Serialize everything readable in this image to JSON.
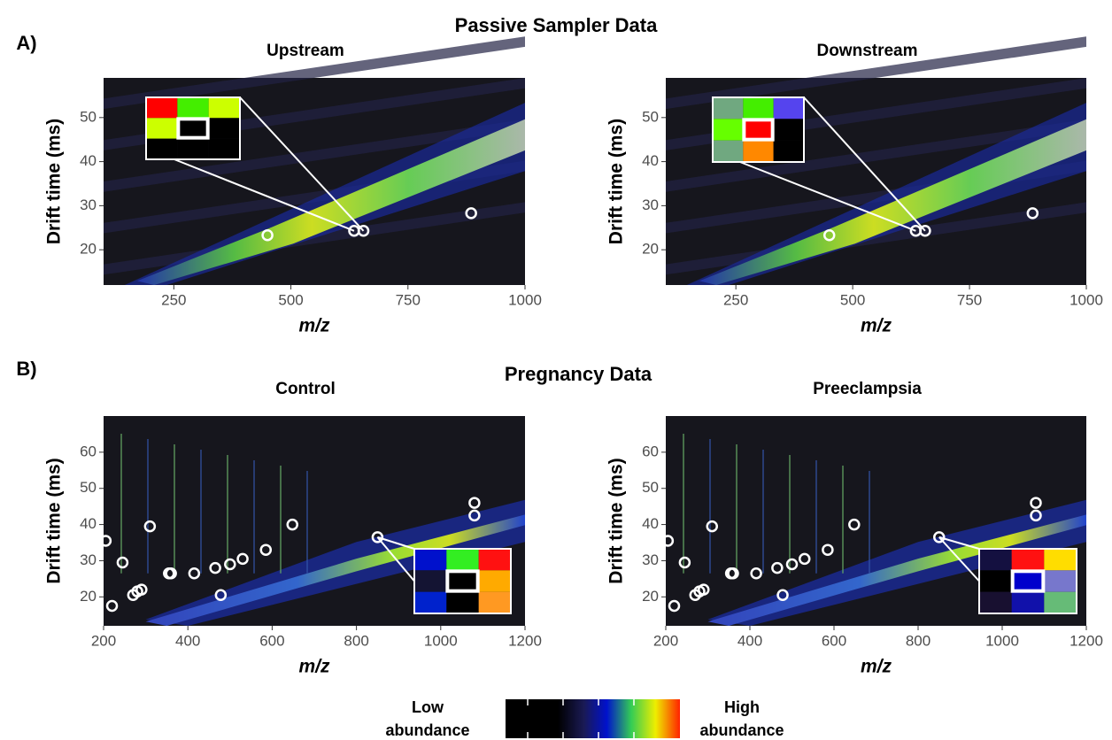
{
  "sections": [
    {
      "label": "A)",
      "title": "Passive Sampler Data"
    },
    {
      "label": "B)",
      "title": "Pregnancy Data"
    }
  ],
  "colorbar": {
    "low_label": "Low abundance",
    "high_label": "High abundance"
  },
  "chart_data": [
    {
      "type": "scatter",
      "title": "Upstream",
      "xlabel": "m/z",
      "ylabel": "Drift time (ms)",
      "x": [
        450,
        635,
        655,
        885
      ],
      "y": [
        23.3,
        24.3,
        24.3,
        28.3
      ],
      "color": "#ffffff",
      "xlim": [
        100,
        1000
      ],
      "ylim": [
        12,
        59
      ],
      "xticks": [
        250,
        500,
        750,
        1000
      ],
      "yticks": [
        20,
        30,
        40,
        50
      ],
      "inset_colors": [
        "#ff0000",
        "#44ee00",
        "#ccff00",
        "#ccff00",
        "#000000",
        "#000000",
        "#000000",
        "#000000",
        "#000000"
      ]
    },
    {
      "type": "scatter",
      "title": "Downstream",
      "xlabel": "m/z",
      "ylabel": "Drift time (ms)",
      "x": [
        450,
        635,
        655,
        885
      ],
      "y": [
        23.3,
        24.3,
        24.3,
        28.3
      ],
      "color": "#ffffff",
      "xlim": [
        100,
        1000
      ],
      "ylim": [
        12,
        59
      ],
      "xticks": [
        250,
        500,
        750,
        1000
      ],
      "yticks": [
        20,
        30,
        40,
        50
      ],
      "inset_colors": [
        "#70a880",
        "#44ee00",
        "#5544ee",
        "#66ff00",
        "#ff0000",
        "#000000",
        "#70a880",
        "#ff8800",
        "#000000"
      ]
    },
    {
      "type": "scatter",
      "title": "Control",
      "xlabel": "m/z",
      "ylabel": "Drift time (ms)",
      "x": [
        205,
        220,
        245,
        270,
        280,
        290,
        310,
        355,
        360,
        415,
        465,
        478,
        500,
        530,
        585,
        648,
        850,
        1080,
        1080
      ],
      "y": [
        35.5,
        17.5,
        29.5,
        20.5,
        21.5,
        22,
        39.5,
        26.5,
        26.5,
        26.5,
        28,
        20.5,
        29,
        30.5,
        33,
        40,
        36.5,
        46,
        42.5
      ],
      "color": "#ffffff",
      "xlim": [
        200,
        1200
      ],
      "ylim": [
        12,
        70
      ],
      "xticks": [
        200,
        400,
        600,
        800,
        1000,
        1200
      ],
      "yticks": [
        20,
        30,
        40,
        50,
        60
      ],
      "inset_colors": [
        "#0011cc",
        "#33ee22",
        "#ff1111",
        "#141433",
        "#000000",
        "#ffaa00",
        "#0022cc",
        "#000000",
        "#ff9922"
      ]
    },
    {
      "type": "scatter",
      "title": "Preeclampsia",
      "xlabel": "m/z",
      "ylabel": "Drift time (ms)",
      "x": [
        205,
        220,
        245,
        270,
        280,
        290,
        310,
        355,
        360,
        415,
        465,
        478,
        500,
        530,
        585,
        648,
        850,
        1080,
        1080
      ],
      "y": [
        35.5,
        17.5,
        29.5,
        20.5,
        21.5,
        22,
        39.5,
        26.5,
        26.5,
        26.5,
        28,
        20.5,
        29,
        30.5,
        33,
        40,
        36.5,
        46,
        42.5
      ],
      "color": "#ffffff",
      "xlim": [
        200,
        1200
      ],
      "ylim": [
        12,
        70
      ],
      "xticks": [
        200,
        400,
        600,
        800,
        1000,
        1200
      ],
      "yticks": [
        20,
        30,
        40,
        50,
        60
      ],
      "inset_colors": [
        "#141040",
        "#ff1111",
        "#ffdd00",
        "#000000",
        "#0000cc",
        "#7777cc",
        "#181030",
        "#1111aa",
        "#66bb77"
      ]
    }
  ]
}
